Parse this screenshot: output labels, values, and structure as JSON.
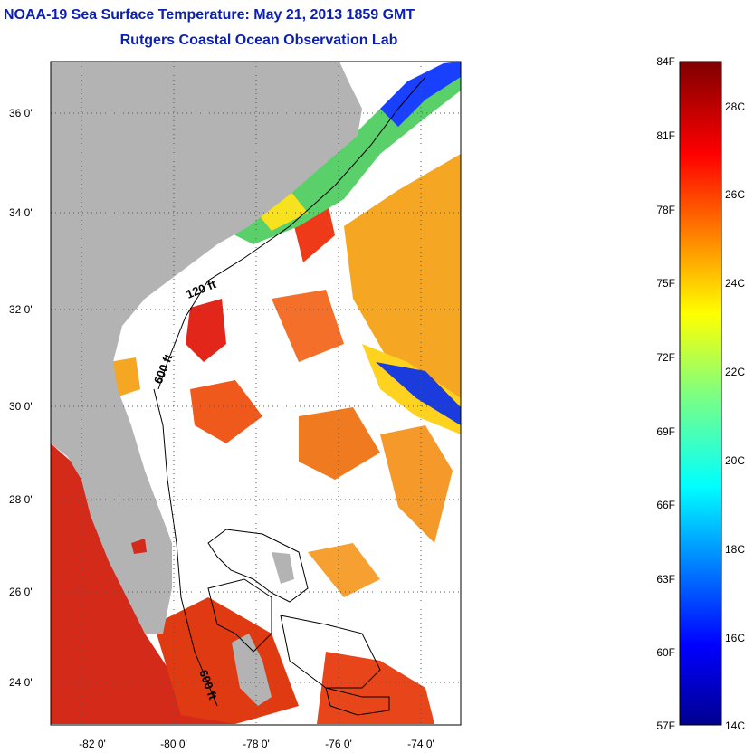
{
  "title": {
    "line1": "NOAA-19 Sea Surface Temperature:  May 21, 2013 1859 GMT",
    "line2": "Rutgers Coastal Ocean Observation Lab"
  },
  "map": {
    "lat_ticks": [
      "36 0'",
      "34 0'",
      "32 0'",
      "30 0'",
      "28 0'",
      "26 0'",
      "24 0'"
    ],
    "lon_ticks": [
      "-82 0'",
      "-80 0'",
      "-78 0'",
      "-76 0'",
      "-74 0'"
    ],
    "contour_labels": [
      "120 ft",
      "600 ft",
      "600 ft"
    ],
    "colors": {
      "land": "#b3b3b3",
      "no_data": "#ffffff"
    }
  },
  "colorbar": {
    "fahrenheit": [
      "84F",
      "81F",
      "78F",
      "75F",
      "72F",
      "69F",
      "66F",
      "63F",
      "60F",
      "57F"
    ],
    "celsius": [
      "28C",
      "26C",
      "24C",
      "22C",
      "20C",
      "18C",
      "16C",
      "14C"
    ]
  }
}
